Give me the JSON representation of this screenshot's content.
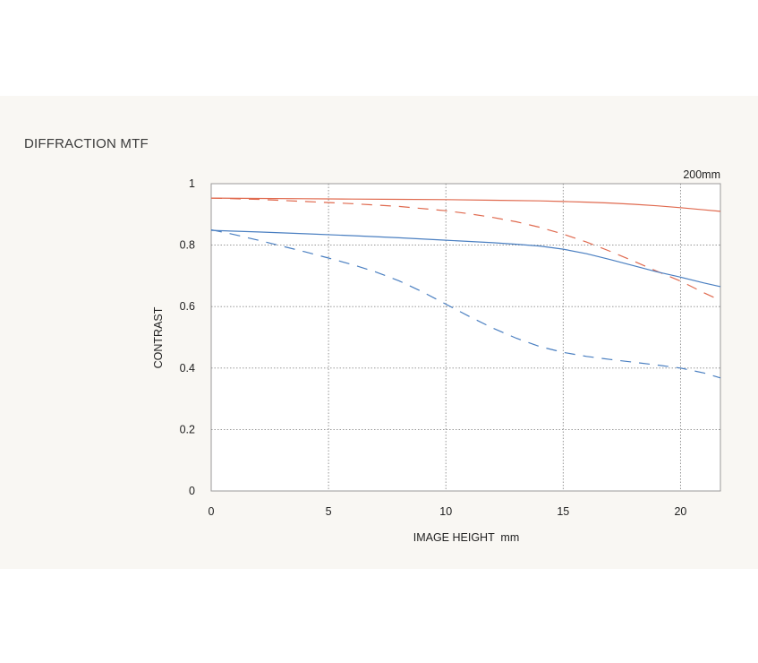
{
  "title": "DIFFRACTION MTF",
  "chart_data": {
    "type": "line",
    "title": "DIFFRACTION MTF",
    "annotation": "200mm",
    "xlabel": "IMAGE HEIGHT  mm",
    "ylabel": "CONTRAST",
    "xlim": [
      0,
      21.7
    ],
    "ylim": [
      0,
      1
    ],
    "xticks": [
      "0",
      "5",
      "10",
      "15",
      "20"
    ],
    "yticks": [
      "0",
      "0.2",
      "0.4",
      "0.6",
      "0.8",
      "1"
    ],
    "grid": true,
    "series": [
      {
        "color": "#e06a4f",
        "dash": "solid",
        "x": [
          0,
          2,
          4,
          6,
          8,
          10,
          12,
          14,
          15,
          16,
          17,
          18,
          19,
          20,
          21,
          21.7
        ],
        "y": [
          0.953,
          0.952,
          0.951,
          0.95,
          0.949,
          0.948,
          0.946,
          0.944,
          0.942,
          0.94,
          0.937,
          0.933,
          0.928,
          0.922,
          0.915,
          0.91
        ]
      },
      {
        "color": "#e06a4f",
        "dash": "dashed",
        "x": [
          0,
          2,
          4,
          6,
          8,
          10,
          11,
          12,
          13,
          14,
          15,
          16,
          17,
          18,
          19,
          20,
          21,
          21.7
        ],
        "y": [
          0.953,
          0.949,
          0.942,
          0.935,
          0.926,
          0.912,
          0.902,
          0.89,
          0.876,
          0.858,
          0.836,
          0.81,
          0.78,
          0.748,
          0.715,
          0.683,
          0.645,
          0.62
        ]
      },
      {
        "color": "#4a7fc1",
        "dash": "solid",
        "x": [
          0,
          2,
          4,
          6,
          8,
          10,
          12,
          13,
          14,
          15,
          16,
          17,
          18,
          19,
          20,
          21,
          21.7
        ],
        "y": [
          0.848,
          0.843,
          0.837,
          0.831,
          0.824,
          0.816,
          0.808,
          0.803,
          0.797,
          0.787,
          0.772,
          0.753,
          0.733,
          0.713,
          0.696,
          0.677,
          0.665
        ]
      },
      {
        "color": "#4a7fc1",
        "dash": "dashed",
        "x": [
          0,
          1,
          2,
          3,
          4,
          5,
          6,
          7,
          8,
          9,
          10,
          11,
          12,
          13,
          14,
          15,
          16,
          17,
          18,
          19,
          20,
          21,
          21.7
        ],
        "y": [
          0.85,
          0.834,
          0.816,
          0.797,
          0.778,
          0.758,
          0.737,
          0.713,
          0.684,
          0.648,
          0.608,
          0.568,
          0.53,
          0.497,
          0.47,
          0.451,
          0.438,
          0.428,
          0.419,
          0.41,
          0.4,
          0.384,
          0.368
        ]
      }
    ]
  }
}
